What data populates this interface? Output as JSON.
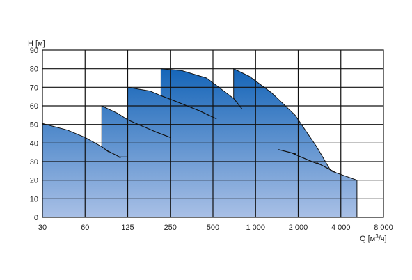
{
  "chart_data": {
    "type": "area",
    "title": "",
    "ylabel": "H [м]",
    "xlabel_prefix": "Q [м",
    "xlabel_sup": "3",
    "xlabel_suffix": "/ч]",
    "x_scale": "log",
    "x_ticks": [
      30,
      60,
      125,
      250,
      500,
      1000,
      2000,
      4000,
      8000
    ],
    "x_tick_labels": [
      "30",
      "60",
      "125",
      "250",
      "500",
      "1 000",
      "2 000",
      "4 000",
      "8 000"
    ],
    "y_ticks": [
      0,
      10,
      20,
      30,
      40,
      50,
      60,
      70,
      80,
      90
    ],
    "y_tick_labels": [
      "0",
      "10",
      "20",
      "30",
      "40",
      "50",
      "60",
      "70",
      "80",
      "90"
    ],
    "xlim": [
      30,
      8000
    ],
    "ylim": [
      0,
      90
    ],
    "grid": true,
    "colors": {
      "fill_top": "#1565b8",
      "fill_bottom": "#a9c0e6",
      "line": "#111111"
    },
    "envelope": [
      [
        30,
        0
      ],
      [
        30,
        50.5
      ],
      [
        45,
        47
      ],
      [
        60,
        43
      ],
      [
        80,
        38
      ],
      [
        80,
        60
      ],
      [
        105,
        56
      ],
      [
        125,
        52.5
      ],
      [
        125,
        70
      ],
      [
        180,
        68
      ],
      [
        215,
        65.5
      ],
      [
        215,
        80
      ],
      [
        300,
        79
      ],
      [
        450,
        75
      ],
      [
        700,
        64
      ],
      [
        700,
        80
      ],
      [
        900,
        76
      ],
      [
        1300,
        67
      ],
      [
        1900,
        55
      ],
      [
        2700,
        38
      ],
      [
        3400,
        25
      ],
      [
        5200,
        20
      ],
      [
        5200,
        0
      ]
    ],
    "curves": [
      {
        "points": [
          [
            80,
            38
          ],
          [
            95,
            34
          ],
          [
            120,
            31
          ],
          [
            125,
            32.5
          ]
        ]
      },
      {
        "points": [
          [
            125,
            52.5
          ],
          [
            170,
            48
          ],
          [
            220,
            44.5
          ],
          [
            250,
            43
          ]
        ]
      },
      {
        "points": [
          [
            215,
            65.5
          ],
          [
            330,
            60
          ],
          [
            480,
            55
          ],
          [
            530,
            53
          ]
        ]
      },
      {
        "points": [
          [
            700,
            64
          ],
          [
            800,
            58.5
          ]
        ]
      },
      {
        "points": [
          [
            1450,
            36.5
          ],
          [
            2200,
            33
          ],
          [
            3300,
            26
          ],
          [
            3700,
            24
          ]
        ]
      }
    ]
  }
}
